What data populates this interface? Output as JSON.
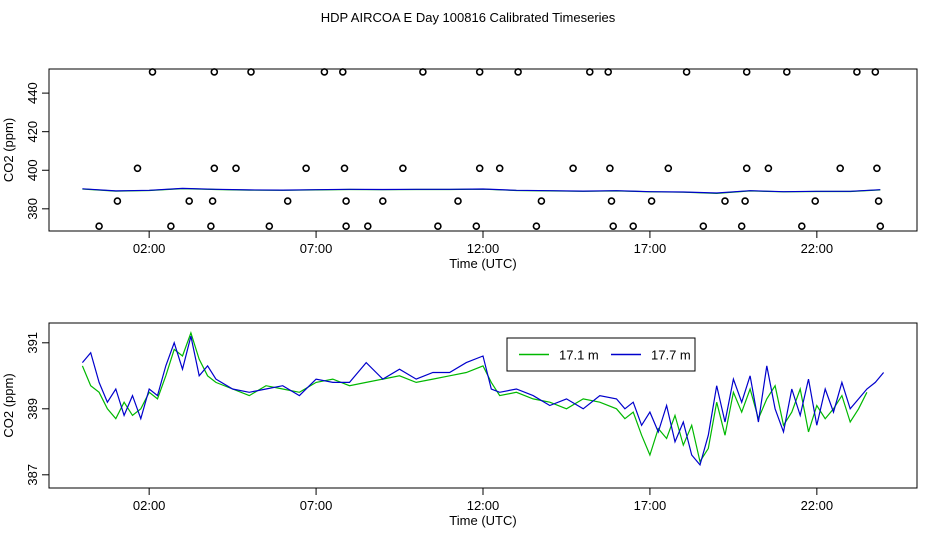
{
  "figure": {
    "title": "HDP AIRCOA E  Day 100816  Calibrated Timeseries"
  },
  "colors": {
    "series_green": "#00b800",
    "series_blue": "#0000cc",
    "axis": "#000000",
    "points": "#000000"
  },
  "chart_data": [
    {
      "type": "line",
      "name_hint": "full-range timeseries with outlier points",
      "xlabel": "Time (UTC)",
      "ylabel": "CO2 (ppm)",
      "xlim": [
        -1.0,
        25.0
      ],
      "ylim": [
        368.5,
        452.5
      ],
      "x_ticks": [
        2,
        7,
        12,
        17,
        22
      ],
      "x_tick_labels": [
        "02:00",
        "07:00",
        "12:00",
        "17:00",
        "22:00"
      ],
      "y_ticks": [
        380,
        400,
        420,
        440
      ],
      "y_tick_labels": [
        "380",
        "400",
        "420",
        "440"
      ],
      "grid": false,
      "legend": "none",
      "points": {
        "marker": "open-circle",
        "x": [
          2.1,
          3.95,
          5.05,
          7.25,
          7.8,
          10.2,
          11.9,
          13.05,
          15.2,
          15.75,
          18.1,
          19.9,
          21.1,
          23.2,
          23.75,
          1.65,
          3.95,
          4.6,
          6.7,
          7.85,
          9.6,
          11.9,
          12.5,
          14.7,
          15.8,
          17.55,
          19.9,
          20.55,
          22.7,
          23.8,
          1.05,
          3.2,
          3.9,
          6.15,
          7.9,
          9.0,
          11.25,
          13.75,
          15.85,
          17.05,
          19.25,
          19.85,
          21.95,
          23.85,
          0.5,
          2.65,
          3.85,
          5.6,
          7.9,
          8.55,
          10.65,
          11.8,
          13.6,
          15.9,
          16.5,
          18.6,
          19.75,
          21.55,
          23.9
        ],
        "y": [
          451,
          451,
          451,
          451,
          451,
          451,
          451,
          451,
          451,
          451,
          451,
          451,
          451,
          451,
          451,
          401,
          401,
          401,
          401,
          401,
          401,
          401,
          401,
          401,
          401,
          401,
          401,
          401,
          401,
          401,
          384,
          384,
          384,
          384,
          384,
          384,
          384,
          384,
          384,
          384,
          384,
          384,
          384,
          384,
          371,
          371,
          371,
          371,
          371,
          371,
          371,
          371,
          371,
          371,
          371,
          371,
          371,
          371,
          371
        ]
      },
      "series": [
        {
          "name": "17.1 m",
          "x": [
            0.0,
            1.0,
            2.0,
            3.0,
            4.0,
            5.0,
            6.0,
            7.0,
            8.0,
            9.0,
            10.0,
            11.0,
            12.0,
            13.0,
            14.0,
            15.0,
            16.0,
            17.0,
            18.0,
            19.0,
            20.0,
            21.0,
            22.0,
            23.0,
            23.9
          ],
          "y": [
            390.3,
            389.2,
            389.5,
            390.5,
            390.0,
            389.7,
            389.6,
            389.8,
            390.0,
            389.9,
            390.0,
            390.0,
            390.2,
            389.5,
            389.3,
            389.1,
            389.3,
            388.8,
            388.6,
            388.0,
            389.3,
            388.8,
            389.0,
            389.0,
            389.8
          ]
        },
        {
          "name": "17.7 m",
          "x": [
            0.0,
            1.0,
            2.0,
            3.0,
            4.0,
            5.0,
            6.0,
            7.0,
            8.0,
            9.0,
            10.0,
            11.0,
            12.0,
            13.0,
            14.0,
            15.0,
            16.0,
            17.0,
            18.0,
            19.0,
            20.0,
            21.0,
            22.0,
            23.0,
            23.9
          ],
          "y": [
            390.4,
            389.3,
            389.6,
            390.6,
            390.1,
            389.8,
            389.7,
            389.9,
            390.1,
            390.0,
            390.1,
            390.1,
            390.3,
            389.6,
            389.4,
            389.2,
            389.4,
            388.9,
            388.7,
            388.2,
            389.4,
            388.9,
            389.1,
            389.1,
            389.9
          ]
        }
      ]
    },
    {
      "type": "line",
      "name_hint": "zoomed timeseries",
      "xlabel": "Time (UTC)",
      "ylabel": "CO2 (ppm)",
      "xlim": [
        -1.0,
        25.0
      ],
      "ylim": [
        386.6,
        391.6
      ],
      "x_ticks": [
        2,
        7,
        12,
        17,
        22
      ],
      "x_tick_labels": [
        "02:00",
        "07:00",
        "12:00",
        "17:00",
        "22:00"
      ],
      "y_ticks": [
        387,
        389,
        391
      ],
      "y_tick_labels": [
        "387",
        "389",
        "391"
      ],
      "grid": false,
      "legend": "top-center",
      "series": [
        {
          "name": "17.1 m",
          "x": [
            0.0,
            0.25,
            0.5,
            0.75,
            1.0,
            1.25,
            1.5,
            1.75,
            2.0,
            2.25,
            2.5,
            2.75,
            3.0,
            3.25,
            3.5,
            3.75,
            4.0,
            4.5,
            5.0,
            5.5,
            6.0,
            6.5,
            7.0,
            7.5,
            8.0,
            8.5,
            9.0,
            9.5,
            10.0,
            10.5,
            11.0,
            11.5,
            12.0,
            12.25,
            12.5,
            13.0,
            13.5,
            14.0,
            14.5,
            15.0,
            15.5,
            16.0,
            16.25,
            16.5,
            16.75,
            17.0,
            17.25,
            17.5,
            17.75,
            18.0,
            18.25,
            18.5,
            18.75,
            19.0,
            19.25,
            19.5,
            19.75,
            20.0,
            20.25,
            20.5,
            20.75,
            21.0,
            21.25,
            21.5,
            21.75,
            22.0,
            22.25,
            22.5,
            22.75,
            23.0,
            23.25,
            23.5
          ],
          "y": [
            390.3,
            389.7,
            389.5,
            389.0,
            388.7,
            389.2,
            388.8,
            389.0,
            389.5,
            389.3,
            390.0,
            390.8,
            390.6,
            391.3,
            390.5,
            390.0,
            389.8,
            389.6,
            389.4,
            389.7,
            389.6,
            389.5,
            389.8,
            389.9,
            389.7,
            389.8,
            389.9,
            390.0,
            389.8,
            389.9,
            390.0,
            390.1,
            390.3,
            389.8,
            389.4,
            389.5,
            389.3,
            389.2,
            389.0,
            389.3,
            389.2,
            389.0,
            388.7,
            388.9,
            388.2,
            387.6,
            388.4,
            388.1,
            388.8,
            387.9,
            388.5,
            387.4,
            387.8,
            389.2,
            388.2,
            389.5,
            388.9,
            389.6,
            388.7,
            389.3,
            389.7,
            388.5,
            388.9,
            389.6,
            388.3,
            389.1,
            388.7,
            389.0,
            389.4,
            388.6,
            389.0,
            389.5
          ]
        },
        {
          "name": "17.7 m",
          "x": [
            0.0,
            0.25,
            0.5,
            0.75,
            1.0,
            1.25,
            1.5,
            1.75,
            2.0,
            2.25,
            2.5,
            2.75,
            3.0,
            3.25,
            3.5,
            3.75,
            4.0,
            4.5,
            5.0,
            5.5,
            6.0,
            6.5,
            7.0,
            7.5,
            8.0,
            8.5,
            9.0,
            9.5,
            10.0,
            10.5,
            11.0,
            11.5,
            12.0,
            12.25,
            12.5,
            13.0,
            13.5,
            14.0,
            14.5,
            15.0,
            15.5,
            16.0,
            16.25,
            16.5,
            16.75,
            17.0,
            17.25,
            17.5,
            17.75,
            18.0,
            18.25,
            18.5,
            18.75,
            19.0,
            19.25,
            19.5,
            19.75,
            20.0,
            20.25,
            20.5,
            20.75,
            21.0,
            21.25,
            21.5,
            21.75,
            22.0,
            22.25,
            22.5,
            22.75,
            23.0,
            23.25,
            23.5,
            23.75,
            24.0
          ],
          "y": [
            390.4,
            390.7,
            389.8,
            389.2,
            389.6,
            388.8,
            389.4,
            388.7,
            389.6,
            389.4,
            390.3,
            391.0,
            390.2,
            391.2,
            390.0,
            390.3,
            389.9,
            389.6,
            389.5,
            389.6,
            389.7,
            389.4,
            389.9,
            389.8,
            389.8,
            390.4,
            389.9,
            390.2,
            389.9,
            390.1,
            390.1,
            390.4,
            390.6,
            389.6,
            389.5,
            389.6,
            389.4,
            389.1,
            389.3,
            389.0,
            389.4,
            389.3,
            389.0,
            389.2,
            388.5,
            388.9,
            388.3,
            389.1,
            388.0,
            388.6,
            387.6,
            387.3,
            388.2,
            389.7,
            388.6,
            389.9,
            389.2,
            390.0,
            388.6,
            390.3,
            389.0,
            388.3,
            389.6,
            388.8,
            389.9,
            388.5,
            389.6,
            388.9,
            389.8,
            389.0,
            389.3,
            389.6,
            389.8,
            390.1
          ]
        }
      ]
    }
  ]
}
